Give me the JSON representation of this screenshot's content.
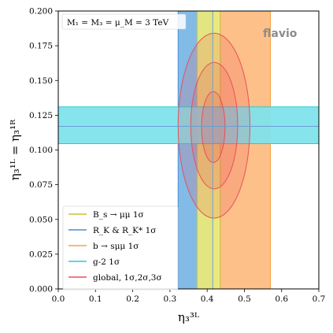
{
  "chart_data": {
    "type": "contour",
    "xlabel": "η₃³ᴸ",
    "ylabel": "η₃¹ᴸ = η₃¹ᴿ",
    "xlim": [
      0.0,
      0.7
    ],
    "ylim": [
      0.0,
      0.2
    ],
    "xticks": [
      "0.0",
      "0.1",
      "0.2",
      "0.3",
      "0.4",
      "0.5",
      "0.6",
      "0.7"
    ],
    "yticks": [
      "0.000",
      "0.025",
      "0.050",
      "0.075",
      "0.100",
      "0.125",
      "0.150",
      "0.175",
      "0.200"
    ],
    "annotation": "M₁ = M₃ = μ_M = 3 TeV",
    "watermark": "flavio",
    "legend_position": "lower-left",
    "bands": [
      {
        "name": "B_s → μμ 1σ",
        "orientation": "vertical",
        "range": [
          0.373,
          0.435
        ],
        "color": "#e8e87a",
        "edge": "#c8c23c"
      },
      {
        "name": "R_K & R_K* 1σ",
        "orientation": "vertical",
        "range": [
          0.322,
          0.41
        ],
        "color": "#7cb7e6",
        "edge": "#4a8fd0"
      },
      {
        "name": "b → sμμ 1σ",
        "orientation": "vertical",
        "range": [
          0.435,
          0.57
        ],
        "color": "#fdbd82",
        "edge": "#f5a243"
      },
      {
        "name": "g-2 1σ",
        "orientation": "horizontal",
        "range": [
          0.1045,
          0.131
        ],
        "color": "#7fe3ec",
        "edge": "#2ec7d6"
      }
    ],
    "global_fit": {
      "name": "global, 1σ,2σ,3σ",
      "center": [
        0.415,
        0.117
      ],
      "contours": [
        {
          "level": "1σ",
          "x_range": [
            0.385,
            0.448
          ],
          "y_range": [
            0.091,
            0.142
          ]
        },
        {
          "level": "2σ",
          "x_range": [
            0.356,
            0.482
          ],
          "y_range": [
            0.072,
            0.163
          ]
        },
        {
          "level": "3σ",
          "x_range": [
            0.322,
            0.515
          ],
          "y_range": [
            0.051,
            0.184
          ]
        }
      ],
      "color": "#e8505b"
    },
    "crosshair": {
      "x": 0.415,
      "y": 0.117
    }
  },
  "legend": [
    {
      "label": "B_s → μμ 1σ",
      "color": "#c8c23c"
    },
    {
      "label": "R_K & R_K* 1σ",
      "color": "#4a8fd0"
    },
    {
      "label": "b → sμμ 1σ",
      "color": "#f5a243"
    },
    {
      "label": "g-2 1σ",
      "color": "#2ec7d6"
    },
    {
      "label": "global, 1σ,2σ,3σ",
      "color": "#e8505b"
    }
  ]
}
